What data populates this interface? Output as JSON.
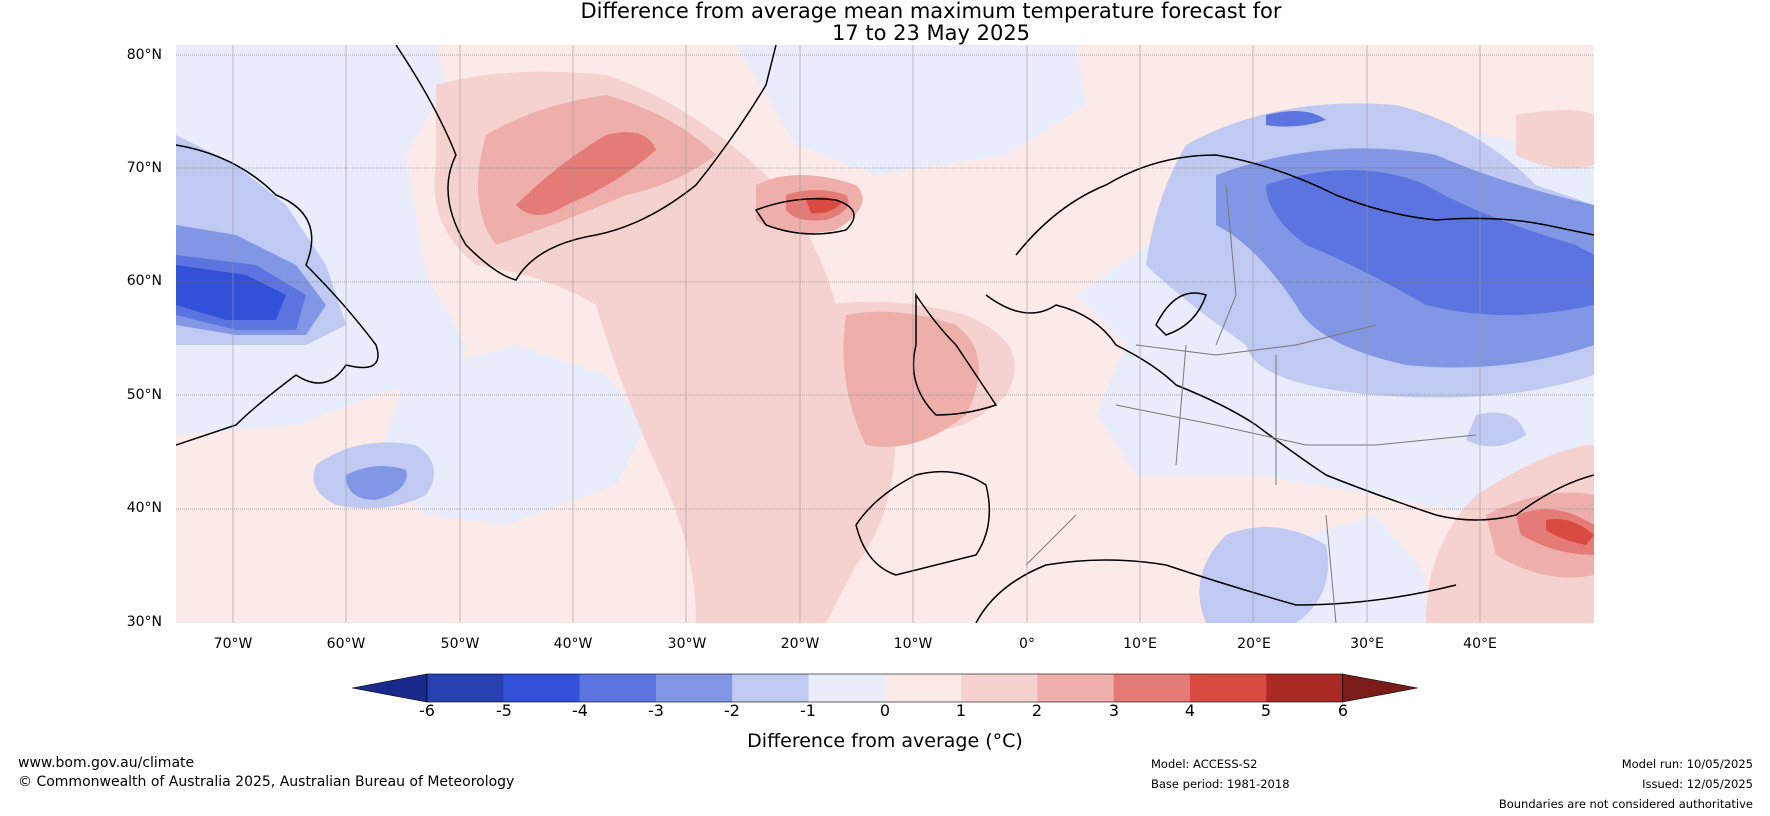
{
  "title_line1": "Difference from average mean maximum temperature forecast for",
  "title_line2": "17 to 23 May 2025",
  "lat_labels": [
    "80°N",
    "70°N",
    "60°N",
    "50°N",
    "40°N",
    "30°N"
  ],
  "lon_labels": [
    "70°W",
    "60°W",
    "50°W",
    "40°W",
    "30°W",
    "20°W",
    "10°W",
    "0°",
    "10°E",
    "20°E",
    "30°E",
    "40°E"
  ],
  "colorbar": {
    "ticks": [
      "-6",
      "-5",
      "-4",
      "-3",
      "-2",
      "-1",
      "0",
      "1",
      "2",
      "3",
      "4",
      "5",
      "6"
    ],
    "colors": [
      "#1a2a8c",
      "#2841b0",
      "#3350d9",
      "#5b74e0",
      "#8197e6",
      "#bfc9f2",
      "#e8ecfb",
      "#fceae8",
      "#f5d2d0",
      "#eeaeaa",
      "#e57b76",
      "#d94a40",
      "#aa2a25",
      "#7a1c1a"
    ],
    "label": "Difference from average (°C)"
  },
  "footer": {
    "website": "www.bom.gov.au/climate",
    "copyright": "© Commonwealth of Australia 2025, Australian Bureau of Meteorology",
    "model": "Model: ACCESS-S2",
    "base_period": "Base period: 1981-2018",
    "model_run": "Model run: 10/05/2025",
    "issued": "Issued: 12/05/2025",
    "disclaimer": "Boundaries are not considered authoritative"
  }
}
